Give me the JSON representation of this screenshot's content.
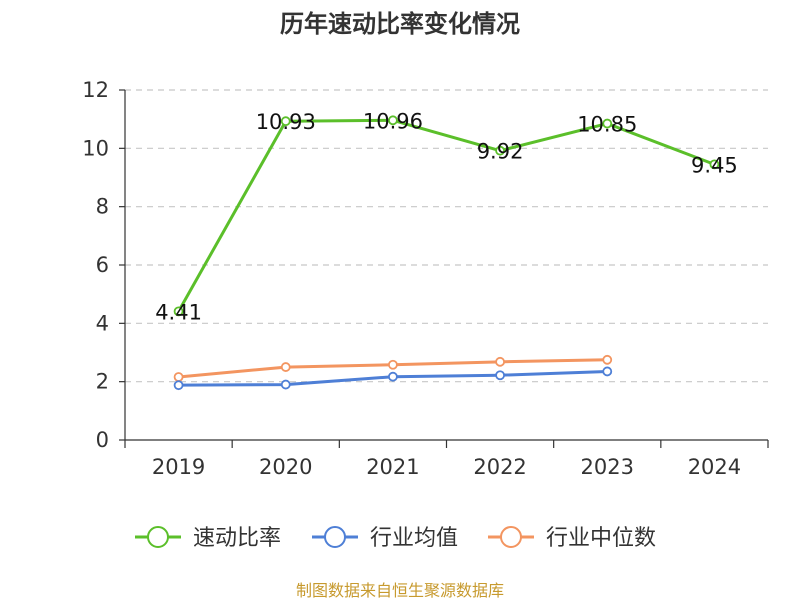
{
  "chart_data": {
    "type": "line",
    "title": "历年速动比率变化情况",
    "xlabel": "",
    "ylabel": "",
    "categories": [
      "2019",
      "2020",
      "2021",
      "2022",
      "2023",
      "2024"
    ],
    "ylim": [
      0,
      12
    ],
    "yticks": [
      0,
      2,
      4,
      6,
      8,
      10,
      12
    ],
    "grid": true,
    "legend_position": "bottom",
    "series": [
      {
        "name": "速动比率",
        "color": "#5bbf2a",
        "values": [
          4.41,
          10.93,
          10.96,
          9.92,
          10.85,
          9.45
        ],
        "labels": [
          "4.41",
          "10.93",
          "10.96",
          "9.92",
          "10.85",
          "9.45"
        ]
      },
      {
        "name": "行业均值",
        "color": "#4e7fd6",
        "values": [
          1.88,
          1.9,
          2.17,
          2.22,
          2.35,
          null
        ]
      },
      {
        "name": "行业中位数",
        "color": "#f39560",
        "values": [
          2.16,
          2.5,
          2.58,
          2.68,
          2.75,
          null
        ]
      }
    ]
  },
  "source": {
    "text": "制图数据来自恒生聚源数据库",
    "color": "#c79a2e"
  }
}
